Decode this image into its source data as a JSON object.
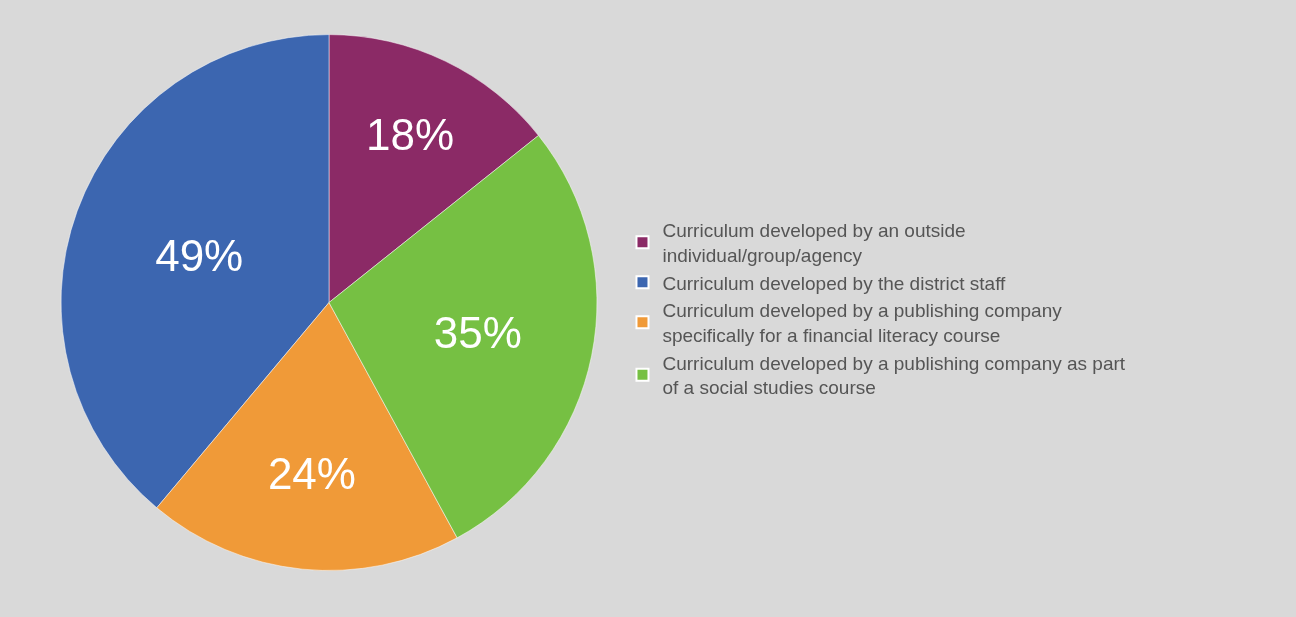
{
  "chart_data": {
    "type": "pie",
    "categories": [
      "Curriculum developed by an outside individual/group/agency",
      "Curriculum developed by the district staff",
      "Curriculum developed by a publishing company specifically for a financial literacy course",
      "Curriculum developed by a publishing company as part of a social studies course"
    ],
    "values": [
      18,
      49,
      24,
      35
    ],
    "value_labels": [
      "18%",
      "49%",
      "24%",
      "35%"
    ],
    "colors": [
      "#8b2a66",
      "#3c66b0",
      "#f09a38",
      "#76c043"
    ],
    "legend": "right"
  }
}
